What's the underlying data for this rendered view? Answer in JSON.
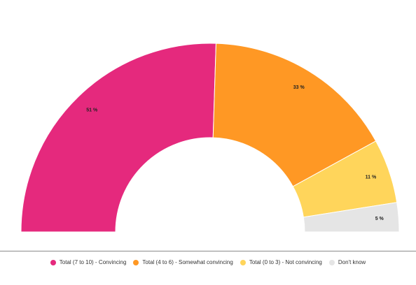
{
  "chart_data": {
    "type": "pie",
    "variant": "semi-donut",
    "categories": [
      "Total (7 to 10) - Convincing",
      "Total (4 to 6) - Somewhat convincing",
      "Total (0 to 3) - Not convincing",
      "Don't know"
    ],
    "values": [
      51,
      33,
      11,
      5
    ],
    "value_labels": [
      "51 %",
      "33 %",
      "11 %",
      "5 %"
    ],
    "colors": [
      "#E5297D",
      "#FF9824",
      "#FFD55B",
      "#E5E5E5"
    ],
    "title": "",
    "legend_position": "bottom"
  },
  "legend": {
    "items": [
      {
        "label": "Total (7 to 10) - Convincing",
        "color": "#E5297D"
      },
      {
        "label": "Total (4 to 6) - Somewhat convincing",
        "color": "#FF9824"
      },
      {
        "label": "Total (0 to 3) - Not convincing",
        "color": "#FFD55B"
      },
      {
        "label": "Don't know",
        "color": "#E5E5E5"
      }
    ]
  }
}
